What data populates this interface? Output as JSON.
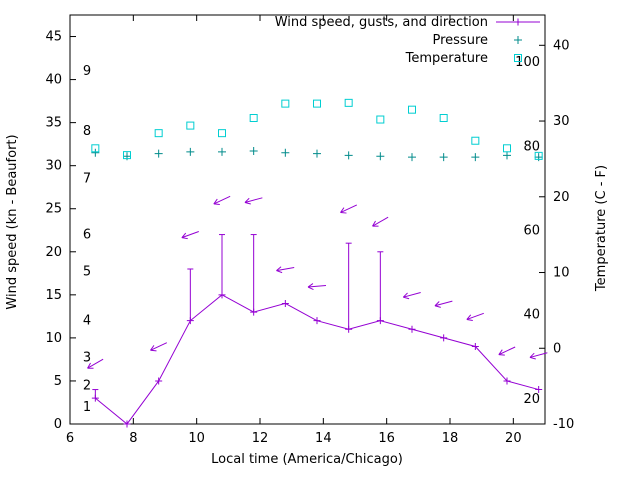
{
  "chart_data": {
    "type": "line",
    "xlabel": "Local time (America/Chicago)",
    "ylabel_left": "Wind speed (kn - Beaufort)",
    "ylabel_right": "Temperature (C - F)",
    "legend_position": "top-right",
    "grid": false,
    "x_range": [
      6,
      21
    ],
    "x_ticks": [
      6,
      8,
      10,
      12,
      14,
      16,
      18,
      20
    ],
    "y_left_range": [
      0,
      47.5
    ],
    "y_left_ticks": [
      0,
      5,
      10,
      15,
      20,
      25,
      30,
      35,
      40,
      45
    ],
    "y_right_range": [
      -10,
      44
    ],
    "y_right_ticks": [
      -10,
      0,
      10,
      20,
      30,
      40
    ],
    "beaufort_labels": [
      {
        "label": "1",
        "kn": 2
      },
      {
        "label": "2",
        "kn": 4.5
      },
      {
        "label": "3",
        "kn": 7.7
      },
      {
        "label": "4",
        "kn": 12
      },
      {
        "label": "5",
        "kn": 17.7
      },
      {
        "label": "6",
        "kn": 22
      },
      {
        "label": "7",
        "kn": 28.5
      },
      {
        "label": "8",
        "kn": 34
      },
      {
        "label": "9",
        "kn": 41
      }
    ],
    "fahrenheit_labels": [
      20,
      40,
      60,
      80,
      100
    ],
    "x": [
      6.8,
      7.8,
      8.8,
      9.8,
      10.8,
      11.8,
      12.8,
      13.8,
      14.8,
      15.8,
      16.8,
      17.8,
      18.8,
      19.8,
      20.8
    ],
    "series": [
      {
        "name": "Wind speed, gusts, and direction",
        "type": "wind",
        "color": "#9400d3",
        "speed_kn": [
          3,
          0,
          5,
          12,
          15,
          13,
          14,
          12,
          11,
          12,
          11,
          10,
          9,
          5,
          4
        ],
        "gust_kn": [
          4,
          0,
          5,
          18,
          22,
          22,
          14,
          12,
          21,
          20,
          11,
          10,
          9,
          5,
          4
        ],
        "arrow_kn": [
          7,
          null,
          9,
          22,
          26,
          26,
          18,
          16,
          25,
          23.5,
          15,
          14,
          12.5,
          8.5,
          8
        ],
        "arrow_angle_deg": [
          210,
          null,
          205,
          200,
          205,
          195,
          190,
          185,
          205,
          210,
          195,
          195,
          200,
          205,
          195
        ]
      },
      {
        "name": "Pressure",
        "type": "points-plus",
        "color": "#008b8b",
        "y_on_left_scale": [
          31.5,
          31.1,
          31.4,
          31.6,
          31.6,
          31.7,
          31.5,
          31.4,
          31.2,
          31.1,
          31.0,
          31.0,
          31.0,
          31.2,
          31.0
        ]
      },
      {
        "name": "Temperature",
        "type": "points-square",
        "color": "#00ced1",
        "temp_c": [
          26.4,
          25.5,
          28.4,
          29.4,
          28.4,
          30.4,
          32.3,
          32.3,
          32.4,
          30.2,
          31.5,
          30.4,
          27.4,
          26.4,
          25.4
        ]
      }
    ]
  }
}
